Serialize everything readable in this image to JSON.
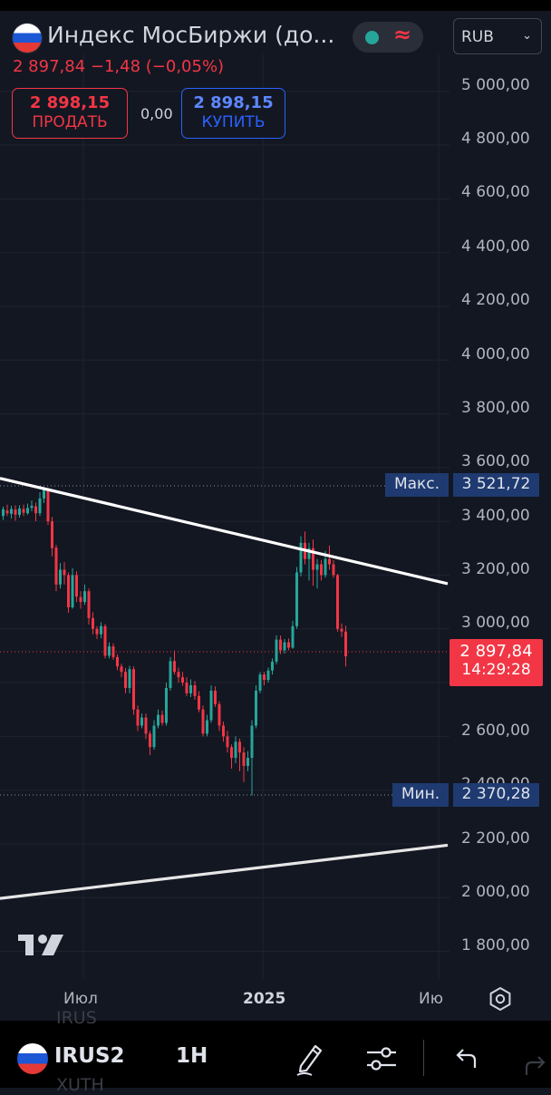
{
  "header": {
    "title": "Индекс МосБиржи (до...",
    "quote": "2 897,84 −1,48 (−0,05%)",
    "currency": "RUB",
    "status_color": "#26a69a",
    "wave_color": "#f23645",
    "wave_glyph": "≈"
  },
  "trade": {
    "sell_price": "2 898,15",
    "sell_label": "ПРОДАТЬ",
    "spread": "0,00",
    "buy_price": "2 898,15",
    "buy_label": "КУПИТЬ"
  },
  "price_axis": {
    "ticks": [
      "5 000,00",
      "4 800,00",
      "4 600,00",
      "4 400,00",
      "4 200,00",
      "4 000,00",
      "3 800,00",
      "3 600,00",
      "3 400,00",
      "3 200,00",
      "3 000,00",
      "2 600,00",
      "2 400,00",
      "2 200,00",
      "2 000,00",
      "1 800,00"
    ]
  },
  "time_axis": {
    "labels": [
      "Июл",
      "2025",
      "Ию"
    ]
  },
  "markers": {
    "max_label": "Макс.",
    "max_value": "3 521,72",
    "min_label": "Мин.",
    "min_value": "2 370,28",
    "last_price": "2 897,84",
    "countdown": "14:29:28"
  },
  "bottom_bar": {
    "symbol": "IRUS2",
    "interval": "1H",
    "ghost_top": "IRUS",
    "ghost_bottom": "XUTH"
  },
  "colors": {
    "up": "#26a69a",
    "down": "#f23645",
    "background": "#131722",
    "grid": "#1f2330",
    "label_blue": "#1e3a70"
  },
  "chart_data": {
    "type": "candlestick",
    "y_range": [
      1700,
      5100
    ],
    "x_labels": [
      "Июл",
      "2025",
      "Ию"
    ],
    "max": 3521.72,
    "min": 2370.28,
    "last": 2897.84,
    "trendlines": [
      {
        "name": "resistance",
        "from": 3560,
        "to": 3168
      },
      {
        "name": "support",
        "from": 1997,
        "to": 2195
      }
    ],
    "candles": [
      [
        3420,
        3445,
        3455,
        3405
      ],
      [
        3440,
        3430,
        3462,
        3420
      ],
      [
        3428,
        3446,
        3458,
        3410
      ],
      [
        3444,
        3425,
        3460,
        3402
      ],
      [
        3424,
        3448,
        3460,
        3414
      ],
      [
        3446,
        3432,
        3462,
        3420
      ],
      [
        3430,
        3450,
        3466,
        3425
      ],
      [
        3450,
        3458,
        3478,
        3437
      ],
      [
        3456,
        3430,
        3470,
        3400
      ],
      [
        3430,
        3485,
        3508,
        3420
      ],
      [
        3485,
        3521,
        3528,
        3468
      ],
      [
        3520,
        3400,
        3525,
        3386
      ],
      [
        3400,
        3300,
        3416,
        3270
      ],
      [
        3302,
        3165,
        3312,
        3140
      ],
      [
        3165,
        3220,
        3245,
        3150
      ],
      [
        3220,
        3200,
        3248,
        3165
      ],
      [
        3200,
        3080,
        3210,
        3060
      ],
      [
        3080,
        3200,
        3226,
        3075
      ],
      [
        3200,
        3120,
        3214,
        3100
      ],
      [
        3118,
        3100,
        3140,
        3075
      ],
      [
        3100,
        3140,
        3165,
        3090
      ],
      [
        3140,
        3040,
        3150,
        3016
      ],
      [
        3040,
        3000,
        3062,
        2980
      ],
      [
        3000,
        2980,
        3010,
        2962
      ],
      [
        2980,
        3010,
        3025,
        2965
      ],
      [
        3010,
        2900,
        3018,
        2890
      ],
      [
        2900,
        2935,
        2950,
        2890
      ],
      [
        2935,
        2895,
        2946,
        2885
      ],
      [
        2895,
        2860,
        2905,
        2846
      ],
      [
        2860,
        2840,
        2870,
        2820
      ],
      [
        2840,
        2780,
        2855,
        2760
      ],
      [
        2780,
        2850,
        2862,
        2760
      ],
      [
        2850,
        2700,
        2860,
        2680
      ],
      [
        2700,
        2640,
        2715,
        2620
      ],
      [
        2640,
        2670,
        2685,
        2630
      ],
      [
        2670,
        2610,
        2685,
        2590
      ],
      [
        2610,
        2560,
        2620,
        2530
      ],
      [
        2560,
        2640,
        2660,
        2550
      ],
      [
        2640,
        2680,
        2700,
        2630
      ],
      [
        2680,
        2650,
        2696,
        2640
      ],
      [
        2650,
        2780,
        2800,
        2640
      ],
      [
        2780,
        2880,
        2895,
        2770
      ],
      [
        2880,
        2840,
        2920,
        2830
      ],
      [
        2840,
        2820,
        2856,
        2800
      ],
      [
        2820,
        2800,
        2840,
        2788
      ],
      [
        2800,
        2760,
        2820,
        2750
      ],
      [
        2760,
        2790,
        2812,
        2746
      ],
      [
        2790,
        2750,
        2806,
        2736
      ],
      [
        2750,
        2700,
        2768,
        2690
      ],
      [
        2700,
        2610,
        2715,
        2600
      ],
      [
        2610,
        2660,
        2680,
        2600
      ],
      [
        2660,
        2770,
        2790,
        2650
      ],
      [
        2770,
        2720,
        2786,
        2710
      ],
      [
        2720,
        2640,
        2730,
        2620
      ],
      [
        2640,
        2600,
        2655,
        2580
      ],
      [
        2600,
        2560,
        2620,
        2540
      ],
      [
        2560,
        2520,
        2570,
        2480
      ],
      [
        2520,
        2580,
        2600,
        2500
      ],
      [
        2580,
        2540,
        2592,
        2470
      ],
      [
        2540,
        2490,
        2560,
        2430
      ],
      [
        2490,
        2520,
        2545,
        2470
      ],
      [
        2520,
        2640,
        2660,
        2380
      ],
      [
        2640,
        2770,
        2790,
        2630
      ],
      [
        2770,
        2830,
        2840,
        2760
      ],
      [
        2830,
        2810,
        2840,
        2790
      ],
      [
        2810,
        2845,
        2856,
        2800
      ],
      [
        2845,
        2878,
        2890,
        2830
      ],
      [
        2878,
        2960,
        2976,
        2868
      ],
      [
        2960,
        2920,
        2975,
        2906
      ],
      [
        2920,
        2950,
        2962,
        2908
      ],
      [
        2950,
        2930,
        2964,
        2920
      ],
      [
        2930,
        3010,
        3030,
        2926
      ],
      [
        3010,
        3210,
        3230,
        3000
      ],
      [
        3210,
        3320,
        3345,
        3195
      ],
      [
        3320,
        3260,
        3362,
        3240
      ],
      [
        3260,
        3300,
        3320,
        3180
      ],
      [
        3300,
        3220,
        3332,
        3160
      ],
      [
        3220,
        3240,
        3260,
        3150
      ],
      [
        3240,
        3200,
        3256,
        3180
      ],
      [
        3200,
        3260,
        3290,
        3190
      ],
      [
        3260,
        3240,
        3310,
        3220
      ],
      [
        3240,
        3200,
        3256,
        3190
      ],
      [
        3200,
        3000,
        3205,
        2990
      ],
      [
        3000,
        2990,
        3020,
        2970
      ],
      [
        2990,
        2897.84,
        3012,
        2860
      ]
    ]
  }
}
